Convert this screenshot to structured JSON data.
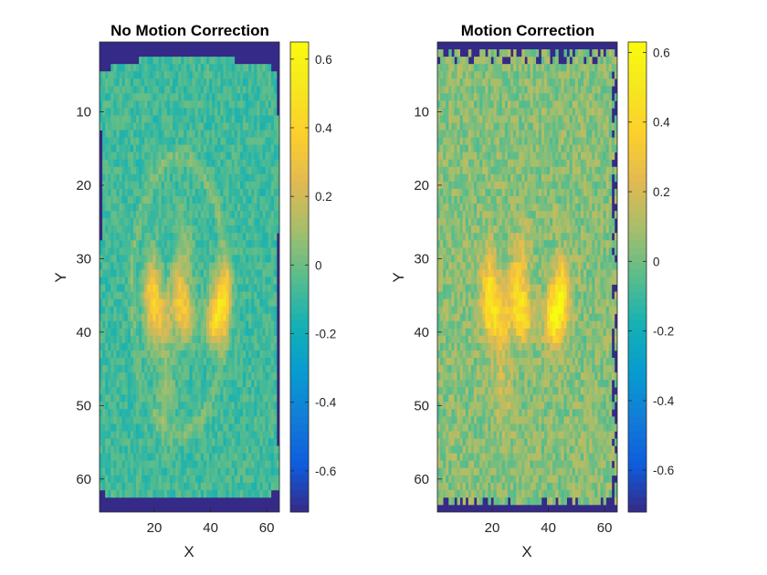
{
  "chart_data": [
    {
      "type": "heatmap",
      "title": "No Motion Correction",
      "xlabel": "X",
      "ylabel": "Y",
      "grid_size": [
        64,
        64
      ],
      "xlim": [
        0.5,
        64.5
      ],
      "ylim": [
        0.5,
        64.5
      ],
      "y_direction": "reversed",
      "xticks": [
        20,
        40,
        60
      ],
      "yticks": [
        10,
        20,
        30,
        40,
        50,
        60
      ],
      "colormap": "parula",
      "colorbar": {
        "ticks": [
          0.6,
          0.4,
          0.2,
          0,
          -0.2,
          -0.4,
          -0.6
        ],
        "tick_labels": [
          "0.6",
          "0.4",
          "0.2",
          "0",
          "-0.2",
          "-0.4",
          "-0.6"
        ],
        "range": [
          -0.72,
          0.65
        ],
        "location": "right"
      },
      "value_range": [
        -0.72,
        0.65
      ],
      "background_value": -0.72,
      "grid": false,
      "motion_corrected": false
    },
    {
      "type": "heatmap",
      "title": "Motion Correction",
      "xlabel": "X",
      "ylabel": "Y",
      "grid_size": [
        64,
        64
      ],
      "xlim": [
        0.5,
        64.5
      ],
      "ylim": [
        0.5,
        64.5
      ],
      "y_direction": "reversed",
      "xticks": [
        20,
        40,
        60
      ],
      "yticks": [
        10,
        20,
        30,
        40,
        50,
        60
      ],
      "colormap": "parula",
      "colorbar": {
        "ticks": [
          0.6,
          0.4,
          0.2,
          0,
          -0.2,
          -0.4,
          -0.6
        ],
        "tick_labels": [
          "0.6",
          "0.4",
          "0.2",
          "0",
          "-0.2",
          "-0.4",
          "-0.6"
        ],
        "range": [
          -0.72,
          0.63
        ],
        "location": "right"
      },
      "value_range": [
        -0.72,
        0.63
      ],
      "background_value": -0.72,
      "grid": false,
      "motion_corrected": true
    }
  ]
}
